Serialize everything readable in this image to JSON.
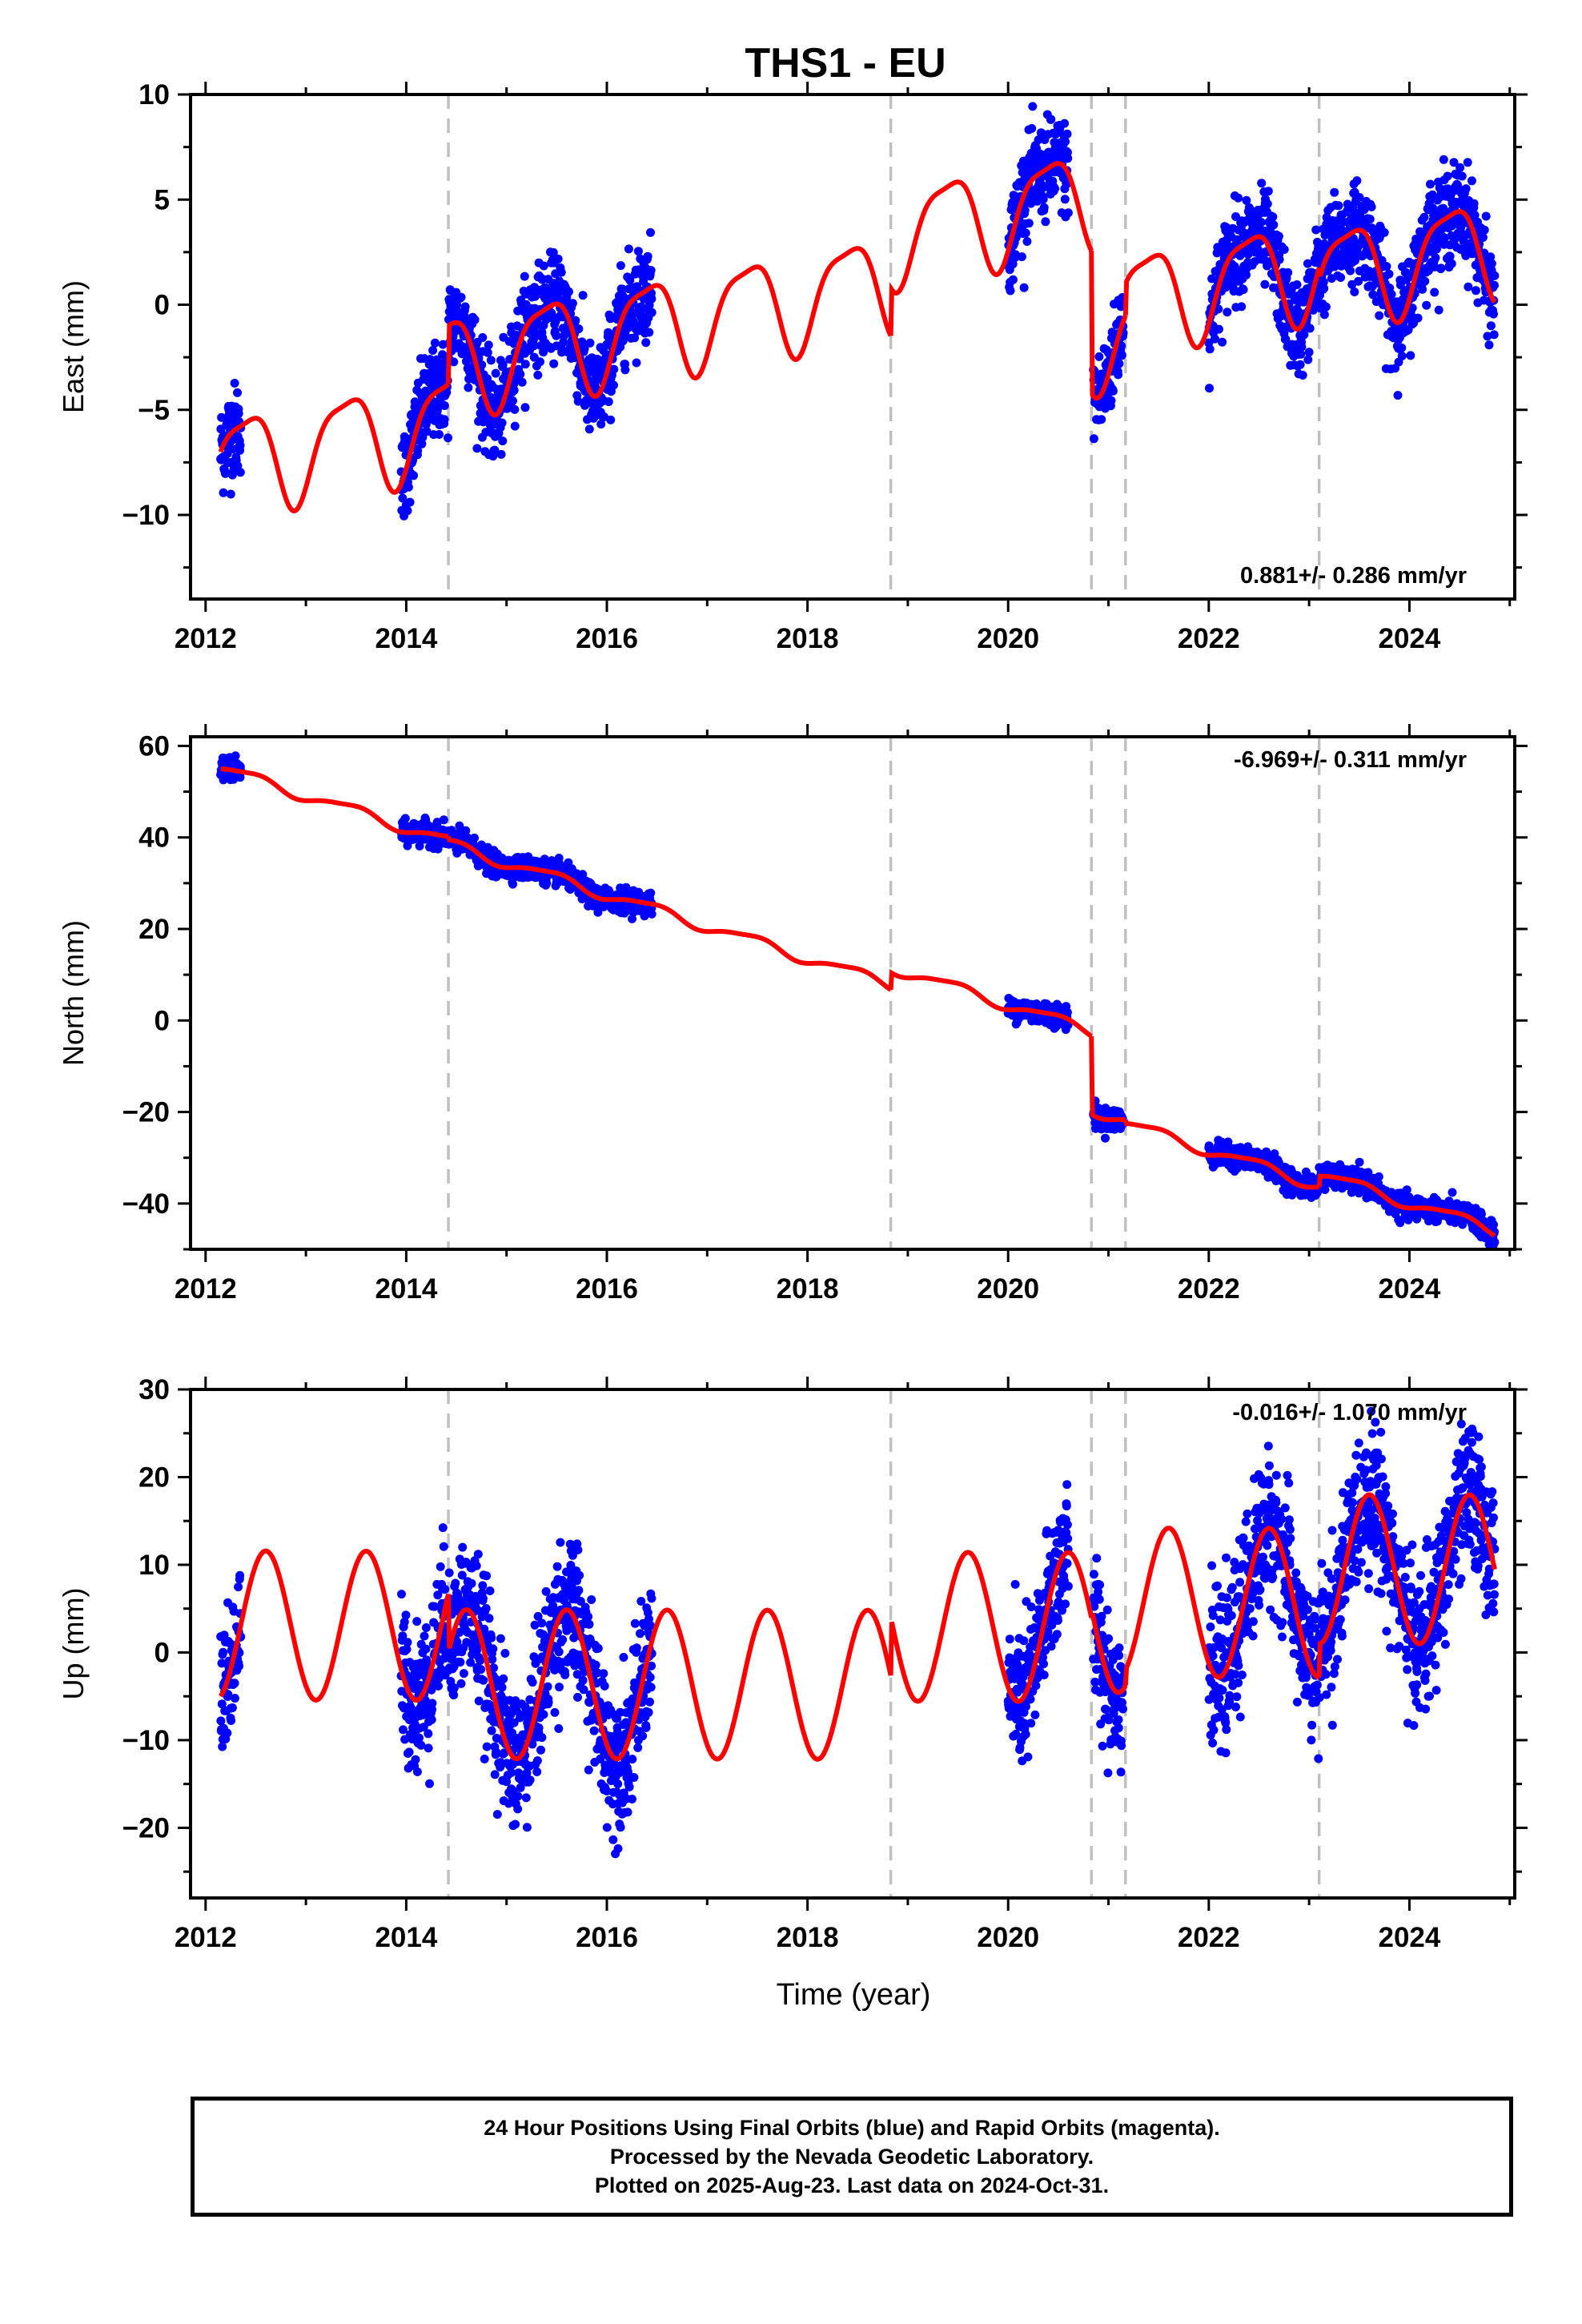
{
  "title": "THS1 - EU",
  "xlabel": "Time (year)",
  "footer": {
    "line1": "24 Hour Positions Using Final Orbits (blue) and Rapid Orbits (magenta).",
    "line2": "Processed by the Nevada Geodetic Laboratory.",
    "line3": "Plotted on 2025-Aug-23. Last data on 2024-Oct-31."
  },
  "colors": {
    "data": "#0000ff",
    "model": "#ff0000",
    "break": "#c0c0c0",
    "axis": "#000000"
  },
  "chart_data": [
    {
      "type": "scatter",
      "ylabel": "East (mm)",
      "ylim": [
        -14,
        10
      ],
      "yticks": [
        10,
        5,
        0,
        -5,
        -10
      ],
      "xlim": [
        2011.85,
        2025.05
      ],
      "xticks": [
        2012,
        2014,
        2016,
        2018,
        2020,
        2022,
        2024
      ],
      "rate": "0.881+/- 0.286 mm/yr",
      "rate_position": "bottom-right",
      "breaks": [
        2014.42,
        2018.83,
        2020.83,
        2021.17,
        2023.1
      ],
      "data_spans": [
        [
          2012.15,
          2012.35
        ],
        [
          2013.95,
          2016.45
        ],
        [
          2020.0,
          2020.6
        ],
        [
          2020.85,
          2021.15
        ],
        [
          2022.0,
          2024.85
        ]
      ],
      "model": {
        "rate": 0.881,
        "annual_amp": 2.3,
        "semi_amp": 0.6,
        "annual_phase": 0.15,
        "semi_phase": 0.0,
        "noise": 1.1,
        "segments": [
          {
            "start": 2012.15,
            "end": 2014.42,
            "y_at_start": -7.0
          },
          {
            "start": 2014.42,
            "end": 2018.83,
            "y_at_start": -1.0
          },
          {
            "start": 2018.83,
            "end": 2020.83,
            "y_at_start": 0.8
          },
          {
            "start": 2020.83,
            "end": 2021.17,
            "y_at_start": -4.2
          },
          {
            "start": 2021.17,
            "end": 2023.1,
            "y_at_start": 1.0
          },
          {
            "start": 2023.1,
            "end": 2024.85,
            "y_at_start": 1.2
          }
        ]
      }
    },
    {
      "type": "scatter",
      "ylabel": "North (mm)",
      "ylim": [
        -50,
        62
      ],
      "yticks": [
        60,
        40,
        20,
        0,
        -20,
        -40
      ],
      "xlim": [
        2011.85,
        2025.05
      ],
      "xticks": [
        2012,
        2014,
        2016,
        2018,
        2020,
        2022,
        2024
      ],
      "rate": "-6.969+/- 0.311 mm/yr",
      "rate_position": "top-right",
      "breaks": [
        2014.42,
        2018.83,
        2020.83,
        2021.17,
        2023.1
      ],
      "data_spans": [
        [
          2012.15,
          2012.35
        ],
        [
          2013.95,
          2016.45
        ],
        [
          2020.0,
          2020.6
        ],
        [
          2020.85,
          2021.15
        ],
        [
          2022.0,
          2024.85
        ]
      ],
      "model": {
        "rate": -6.969,
        "annual_amp": 1.2,
        "semi_amp": 0.3,
        "annual_phase": 0.2,
        "semi_phase": 0.0,
        "noise": 1.2,
        "segments": [
          {
            "start": 2012.15,
            "end": 2014.42,
            "y_at_start": 55.0
          },
          {
            "start": 2014.42,
            "end": 2018.83,
            "y_at_start": 39.5
          },
          {
            "start": 2018.83,
            "end": 2020.83,
            "y_at_start": 10.5
          },
          {
            "start": 2020.83,
            "end": 2021.17,
            "y_at_start": -20.5
          },
          {
            "start": 2021.17,
            "end": 2023.1,
            "y_at_start": -22.5
          },
          {
            "start": 2023.1,
            "end": 2024.85,
            "y_at_start": -34.0
          }
        ]
      }
    },
    {
      "type": "scatter",
      "ylabel": "Up (mm)",
      "ylim": [
        -28,
        30
      ],
      "yticks": [
        30,
        20,
        10,
        0,
        -10,
        -20
      ],
      "xlim": [
        2011.85,
        2025.05
      ],
      "xticks": [
        2012,
        2014,
        2016,
        2018,
        2020,
        2022,
        2024
      ],
      "rate": "-0.016+/- 1.070 mm/yr",
      "rate_position": "top-right",
      "breaks": [
        2014.42,
        2018.83,
        2020.83,
        2021.17,
        2023.1
      ],
      "data_spans": [
        [
          2012.15,
          2012.35
        ],
        [
          2013.95,
          2016.45
        ],
        [
          2020.0,
          2020.6
        ],
        [
          2020.85,
          2021.15
        ],
        [
          2022.0,
          2024.85
        ]
      ],
      "model": {
        "rate": -0.016,
        "annual_amp": 8.5,
        "semi_amp": 0.0,
        "annual_phase": 0.35,
        "semi_phase": 0.0,
        "noise": 4.0,
        "segments": [
          {
            "start": 2012.15,
            "end": 2014.42,
            "y_at_start": -5.0
          },
          {
            "start": 2014.42,
            "end": 2018.83,
            "y_at_start": 0.0
          },
          {
            "start": 2018.83,
            "end": 2020.83,
            "y_at_start": 4.0
          },
          {
            "start": 2020.83,
            "end": 2021.17,
            "y_at_start": 5.0
          },
          {
            "start": 2021.17,
            "end": 2023.1,
            "y_at_start": -2.0
          },
          {
            "start": 2023.1,
            "end": 2024.85,
            "y_at_start": 1.0
          }
        ]
      }
    }
  ]
}
